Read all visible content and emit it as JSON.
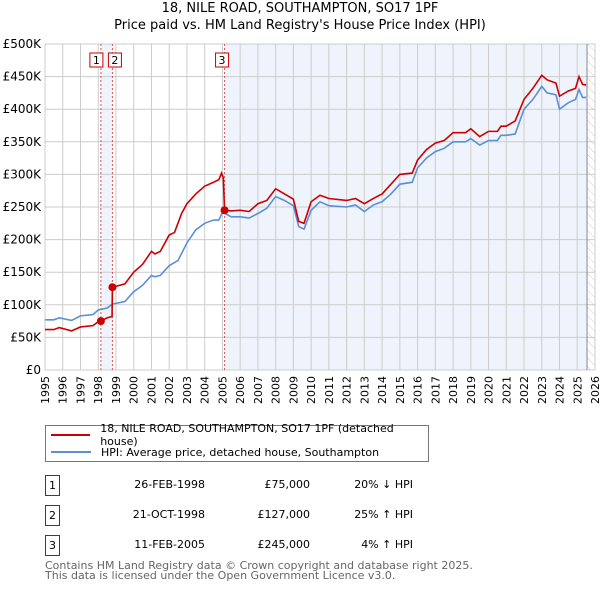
{
  "title": {
    "line1": "18, NILE ROAD, SOUTHAMPTON, SO17 1PF",
    "line2": "Price paid vs. HM Land Registry's House Price Index (HPI)"
  },
  "chart_data": {
    "type": "line",
    "title": "18, NILE ROAD, SOUTHAMPTON, SO17 1PF — Price paid vs. HM Land Registry's House Price Index (HPI)",
    "xlim": [
      1995,
      2026
    ],
    "ylim": [
      0,
      500000
    ],
    "x_ticks": [
      "1995",
      "1996",
      "1997",
      "1998",
      "1999",
      "2000",
      "2001",
      "2002",
      "2003",
      "2004",
      "2005",
      "2006",
      "2007",
      "2008",
      "2009",
      "2010",
      "2011",
      "2012",
      "2013",
      "2014",
      "2015",
      "2016",
      "2017",
      "2018",
      "2019",
      "2020",
      "2021",
      "2022",
      "2023",
      "2024",
      "2025",
      "2026"
    ],
    "y_ticks": [
      {
        "v": 0,
        "label": "£0"
      },
      {
        "v": 50000,
        "label": "£50K"
      },
      {
        "v": 100000,
        "label": "£100K"
      },
      {
        "v": 150000,
        "label": "£150K"
      },
      {
        "v": 200000,
        "label": "£200K"
      },
      {
        "v": 250000,
        "label": "£250K"
      },
      {
        "v": 300000,
        "label": "£300K"
      },
      {
        "v": 350000,
        "label": "£350K"
      },
      {
        "v": 400000,
        "label": "£400K"
      },
      {
        "v": 450000,
        "label": "£450K"
      },
      {
        "v": 500000,
        "label": "£500K"
      }
    ],
    "grid": true,
    "series": [
      {
        "name": "18, NILE ROAD, SOUTHAMPTON, SO17 1PF (detached house)",
        "color": "#cc0000",
        "points": [
          [
            1995,
            62
          ],
          [
            1995.5,
            62
          ],
          [
            1995.8,
            65
          ],
          [
            1996.5,
            60
          ],
          [
            1997,
            66
          ],
          [
            1997.7,
            68
          ],
          [
            1998,
            74
          ],
          [
            1998.15,
            75
          ],
          [
            1998.5,
            80
          ],
          [
            1998.78,
            82
          ],
          [
            1998.8,
            127
          ],
          [
            1999.5,
            132
          ],
          [
            2000,
            150
          ],
          [
            2000.5,
            162
          ],
          [
            2001,
            182
          ],
          [
            2001.2,
            178
          ],
          [
            2001.5,
            182
          ],
          [
            2002,
            207
          ],
          [
            2002.3,
            211
          ],
          [
            2002.7,
            240
          ],
          [
            2003,
            255
          ],
          [
            2003.5,
            270
          ],
          [
            2004,
            282
          ],
          [
            2004.5,
            288
          ],
          [
            2004.8,
            292
          ],
          [
            2004.95,
            302
          ],
          [
            2005.05,
            295
          ],
          [
            2005.12,
            245
          ],
          [
            2005.5,
            244
          ],
          [
            2006,
            245
          ],
          [
            2006.5,
            243
          ],
          [
            2007,
            255
          ],
          [
            2007.5,
            260
          ],
          [
            2008,
            278
          ],
          [
            2008.5,
            270
          ],
          [
            2009,
            262
          ],
          [
            2009.3,
            228
          ],
          [
            2009.6,
            225
          ],
          [
            2010,
            258
          ],
          [
            2010.5,
            268
          ],
          [
            2011,
            263
          ],
          [
            2012,
            260
          ],
          [
            2012.5,
            263
          ],
          [
            2013,
            255
          ],
          [
            2013.5,
            263
          ],
          [
            2014,
            270
          ],
          [
            2014.5,
            285
          ],
          [
            2015,
            300
          ],
          [
            2015.7,
            302
          ],
          [
            2016,
            322
          ],
          [
            2016.5,
            338
          ],
          [
            2017,
            348
          ],
          [
            2017.5,
            352
          ],
          [
            2018,
            364
          ],
          [
            2018.7,
            364
          ],
          [
            2019,
            370
          ],
          [
            2019.5,
            358
          ],
          [
            2020,
            366
          ],
          [
            2020.5,
            366
          ],
          [
            2020.7,
            374
          ],
          [
            2021,
            374
          ],
          [
            2021.5,
            382
          ],
          [
            2022,
            415
          ],
          [
            2022.5,
            432
          ],
          [
            2023,
            452
          ],
          [
            2023.3,
            445
          ],
          [
            2023.8,
            440
          ],
          [
            2024,
            420
          ],
          [
            2024.5,
            428
          ],
          [
            2024.9,
            432
          ],
          [
            2025.1,
            450
          ],
          [
            2025.3,
            438
          ],
          [
            2025.5,
            437
          ]
        ]
      },
      {
        "name": "HPI: Average price, detached house, Southampton",
        "color": "#5b8fd6",
        "points": [
          [
            1995,
            77
          ],
          [
            1995.5,
            77
          ],
          [
            1995.8,
            80
          ],
          [
            1996.5,
            76
          ],
          [
            1997,
            83
          ],
          [
            1997.7,
            85
          ],
          [
            1998,
            92
          ],
          [
            1998.5,
            95
          ],
          [
            1998.8,
            101
          ],
          [
            1999.5,
            105
          ],
          [
            2000,
            120
          ],
          [
            2000.5,
            130
          ],
          [
            2001,
            145
          ],
          [
            2001.2,
            143
          ],
          [
            2001.5,
            145
          ],
          [
            2002,
            160
          ],
          [
            2002.5,
            168
          ],
          [
            2003,
            195
          ],
          [
            2003.5,
            215
          ],
          [
            2004,
            225
          ],
          [
            2004.5,
            230
          ],
          [
            2004.8,
            230
          ],
          [
            2005,
            242
          ],
          [
            2005.5,
            235
          ],
          [
            2006,
            235
          ],
          [
            2006.5,
            233
          ],
          [
            2007,
            240
          ],
          [
            2007.5,
            248
          ],
          [
            2008,
            266
          ],
          [
            2008.5,
            260
          ],
          [
            2009,
            252
          ],
          [
            2009.3,
            220
          ],
          [
            2009.6,
            216
          ],
          [
            2010,
            245
          ],
          [
            2010.5,
            258
          ],
          [
            2011,
            252
          ],
          [
            2012,
            250
          ],
          [
            2012.5,
            253
          ],
          [
            2013,
            243
          ],
          [
            2013.5,
            253
          ],
          [
            2014,
            258
          ],
          [
            2014.5,
            270
          ],
          [
            2015,
            285
          ],
          [
            2015.7,
            288
          ],
          [
            2016,
            310
          ],
          [
            2016.5,
            325
          ],
          [
            2017,
            335
          ],
          [
            2017.5,
            340
          ],
          [
            2018,
            350
          ],
          [
            2018.7,
            350
          ],
          [
            2019,
            355
          ],
          [
            2019.5,
            345
          ],
          [
            2020,
            352
          ],
          [
            2020.5,
            352
          ],
          [
            2020.7,
            360
          ],
          [
            2021,
            360
          ],
          [
            2021.5,
            362
          ],
          [
            2022,
            400
          ],
          [
            2022.5,
            415
          ],
          [
            2023,
            435
          ],
          [
            2023.3,
            425
          ],
          [
            2023.8,
            422
          ],
          [
            2024,
            400
          ],
          [
            2024.5,
            410
          ],
          [
            2024.9,
            415
          ],
          [
            2025.1,
            430
          ],
          [
            2025.3,
            418
          ],
          [
            2025.5,
            418
          ]
        ]
      }
    ],
    "sales": [
      {
        "n": "1",
        "x": 1998.15,
        "y": 75
      },
      {
        "n": "2",
        "x": 1998.8,
        "y": 127
      },
      {
        "n": "3",
        "x": 2005.12,
        "y": 245
      }
    ],
    "shaded_ranges": [
      [
        1998.15,
        1998.8
      ],
      [
        2005.12,
        2025.55
      ]
    ],
    "hatched_range": [
      2025.55,
      2026
    ],
    "y_units": "£K for points"
  },
  "legend": {
    "red": "18, NILE ROAD, SOUTHAMPTON, SO17 1PF (detached house)",
    "blue": "HPI: Average price, detached house, Southampton"
  },
  "sales_table": [
    {
      "n": "1",
      "date": "26-FEB-1998",
      "price": "£75,000",
      "hpi": "20% ↓ HPI"
    },
    {
      "n": "2",
      "date": "21-OCT-1998",
      "price": "£127,000",
      "hpi": "25% ↑ HPI"
    },
    {
      "n": "3",
      "date": "11-FEB-2005",
      "price": "£245,000",
      "hpi": "4% ↑ HPI"
    }
  ],
  "footer": {
    "line1": "Contains HM Land Registry data © Crown copyright and database right 2025.",
    "line2": "This data is licensed under the Open Government Licence v3.0."
  }
}
